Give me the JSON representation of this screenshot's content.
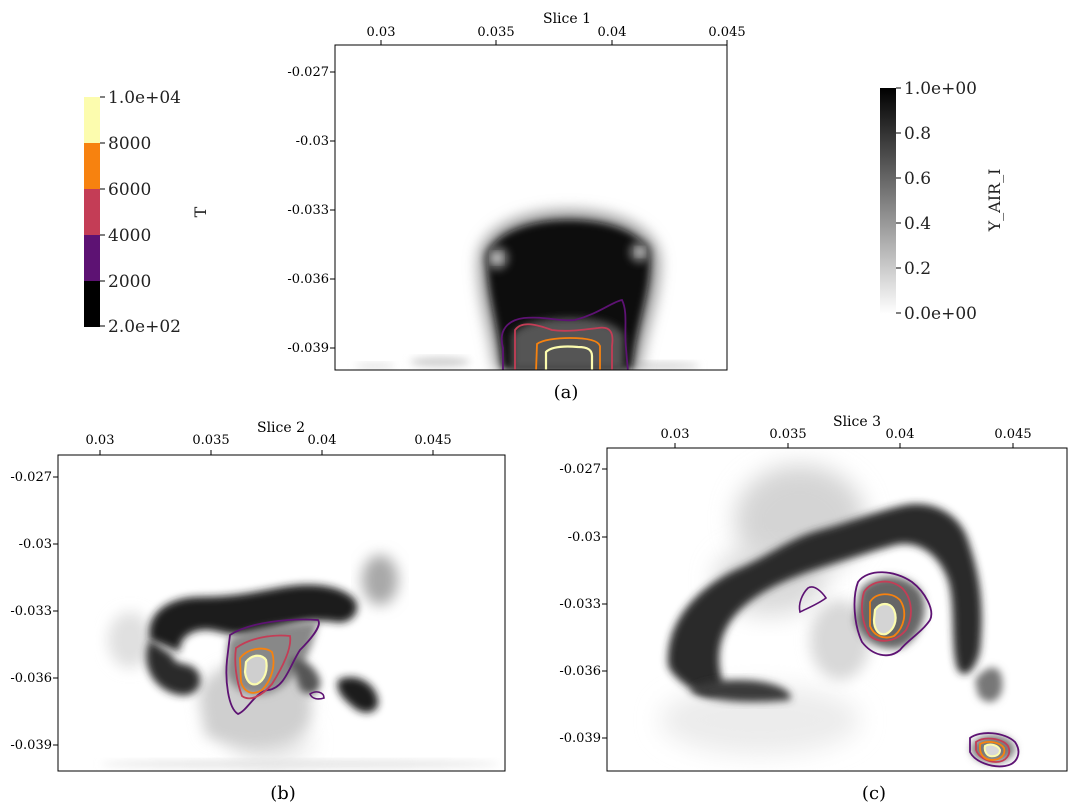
{
  "colorbars": {
    "T": {
      "title": "T",
      "tick_labels": [
        "1.0e+04",
        "8000",
        "6000",
        "4000",
        "2000",
        "2.0e+02"
      ],
      "band_colors": [
        "#fcfcae",
        "#f7820f",
        "#c43d56",
        "#5d1273",
        "#000000"
      ]
    },
    "Y": {
      "title": "Y_AIR_I",
      "tick_labels": [
        "1.0e+00",
        "0.8",
        "0.6",
        "0.4",
        "0.2",
        "0.0e+00"
      ],
      "gradient_top": "#000000",
      "gradient_bottom": "#ffffff"
    }
  },
  "x_tick_labels": [
    "0.03",
    "0.035",
    "0.04",
    "0.045"
  ],
  "y_tick_labels": [
    "-0.027",
    "-0.03",
    "-0.033",
    "-0.036",
    "-0.039"
  ],
  "contour_colors": {
    "c2000": "#5d1273",
    "c4000": "#c43d56",
    "c6000": "#f7820f",
    "c8000": "#fcfcae"
  },
  "panels": [
    {
      "title": "Slice 1",
      "caption": "(a)"
    },
    {
      "title": "Slice 2",
      "caption": "(b)"
    },
    {
      "title": "Slice 3",
      "caption": "(c)"
    }
  ]
}
